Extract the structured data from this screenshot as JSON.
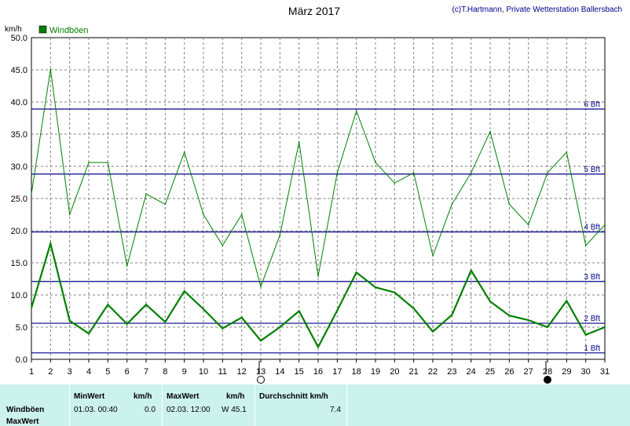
{
  "header": {
    "title": "März 2017",
    "credit": "(c)T.Hartmann, Private Wetterstation Ballersbach"
  },
  "chart_data": {
    "type": "line",
    "ylabel": "km/h",
    "ylim": [
      0,
      50
    ],
    "yticks": [
      "0.0",
      "5.0",
      "10.0",
      "15.0",
      "20.0",
      "25.0",
      "30.0",
      "35.0",
      "40.0",
      "45.0",
      "50.0"
    ],
    "x": [
      1,
      2,
      3,
      4,
      5,
      6,
      7,
      8,
      9,
      10,
      11,
      12,
      13,
      14,
      15,
      16,
      17,
      18,
      19,
      20,
      21,
      22,
      23,
      24,
      25,
      26,
      27,
      28,
      29,
      30,
      31
    ],
    "legend": {
      "placement": "top-left",
      "label": "Windböen"
    },
    "grid": true,
    "series": [
      {
        "name": "Windböen",
        "role": "max",
        "color": "#008000",
        "values": [
          25.7,
          45.1,
          22.5,
          30.6,
          30.6,
          14.5,
          25.7,
          24.1,
          32.2,
          22.5,
          17.7,
          22.5,
          11.3,
          19.3,
          33.8,
          12.9,
          29.0,
          38.6,
          30.6,
          27.4,
          29.0,
          16.1,
          24.1,
          29.0,
          35.4,
          24.1,
          20.9,
          29.0,
          32.2,
          17.7,
          20.9
        ]
      },
      {
        "name": "",
        "role": "mean",
        "color": "#008000",
        "values": [
          8.0,
          18.0,
          6.0,
          4.0,
          8.5,
          5.5,
          8.5,
          5.8,
          10.6,
          7.8,
          4.8,
          6.5,
          2.9,
          5.0,
          7.5,
          1.9,
          7.6,
          13.5,
          11.2,
          10.4,
          7.9,
          4.3,
          6.9,
          13.8,
          9.0,
          6.8,
          6.1,
          5.0,
          9.1,
          3.8,
          5.0
        ]
      }
    ],
    "bft_lines": [
      {
        "label": "1 Bft",
        "value": 1.0
      },
      {
        "label": "2 Bft",
        "value": 5.6
      },
      {
        "label": "3 Bft",
        "value": 12.1
      },
      {
        "label": "4 Bft",
        "value": 19.8
      },
      {
        "label": "5 Bft",
        "value": 28.8
      },
      {
        "label": "6 Bft",
        "value": 38.9
      }
    ],
    "moon_phases": [
      {
        "day": 13,
        "phase": "full-moon"
      },
      {
        "day": 28,
        "phase": "new-moon"
      }
    ]
  },
  "stats": {
    "col_min_header": "MinWert",
    "col_min_unit": "km/h",
    "col_max_header": "MaxWert",
    "col_max_unit": "km/h",
    "col_avg_header": "Durchschnitt km/h",
    "row1_label": "Windböen",
    "row2_label": "MaxWert",
    "min_time": "01.03.  00:40",
    "min_value": "0.0",
    "max_time": "02.03.  12:00",
    "max_value": "W 45.1",
    "avg_value": "7.4"
  },
  "colors": {
    "series": "#008000",
    "bft_line": "#00008b",
    "grid": "#808080",
    "stats_bg": "#ccf2ee"
  }
}
